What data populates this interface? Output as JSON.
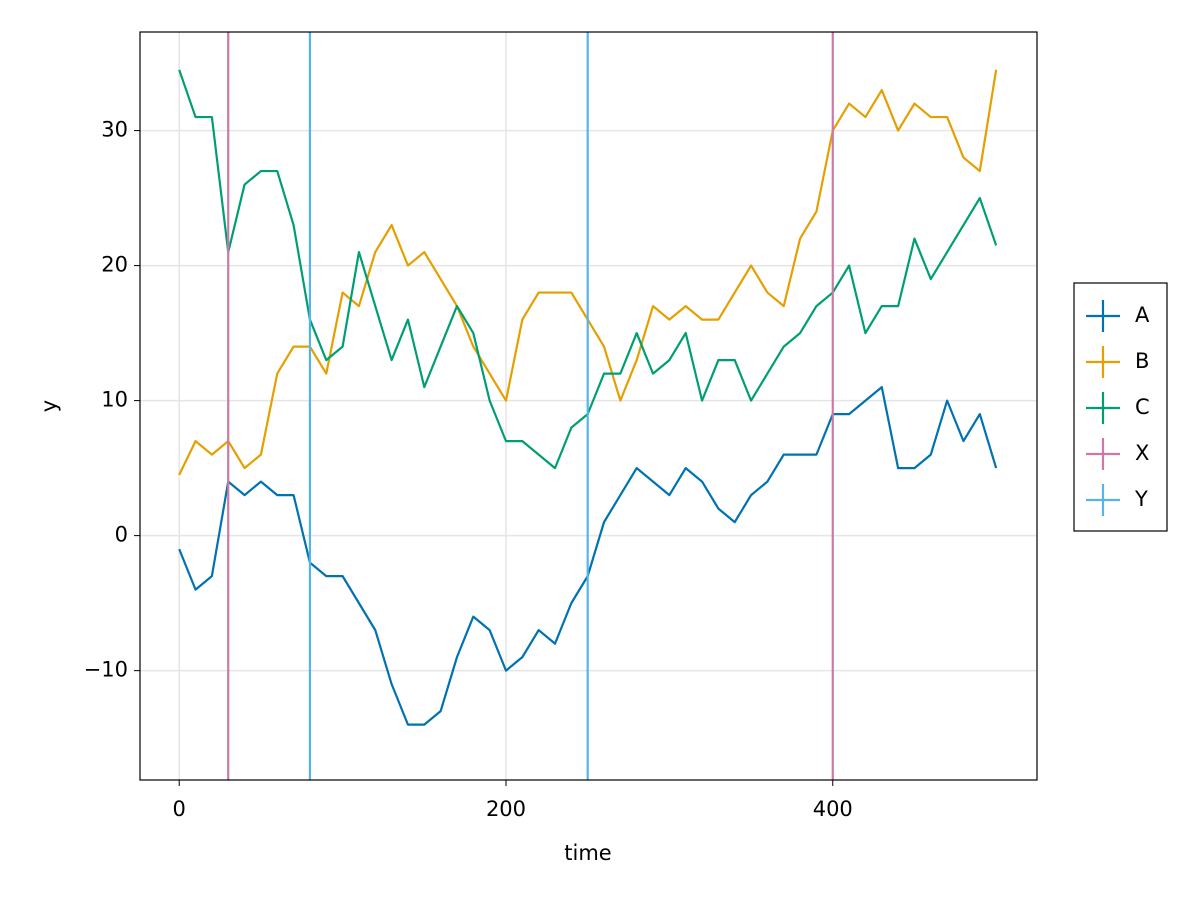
{
  "chart_data": {
    "type": "line",
    "x_label": "time",
    "y_label": "y",
    "x": [
      0,
      10,
      20,
      30,
      40,
      50,
      60,
      70,
      80,
      90,
      100,
      110,
      120,
      130,
      140,
      150,
      160,
      170,
      180,
      190,
      200,
      210,
      220,
      230,
      240,
      250,
      260,
      270,
      280,
      290,
      300,
      310,
      320,
      330,
      340,
      350,
      360,
      370,
      380,
      390,
      400,
      410,
      420,
      430,
      440,
      450,
      460,
      470,
      480,
      490,
      500
    ],
    "series": [
      {
        "name": "A",
        "color": "#0072b2",
        "values": [
          -1,
          -4,
          -3,
          4,
          3,
          4,
          3,
          3,
          -2,
          -3,
          -3,
          -5,
          -7,
          -11,
          -14,
          -14,
          -13,
          -9,
          -6,
          -7,
          -10,
          -9,
          -7,
          -8,
          -5,
          -3,
          1,
          3,
          5,
          4,
          3,
          5,
          4,
          2,
          1,
          3,
          4,
          6,
          6,
          6,
          9,
          9,
          10,
          11,
          5,
          5,
          6,
          10,
          7,
          9,
          5
        ]
      },
      {
        "name": "B",
        "color": "#e69f00",
        "values": [
          4.5,
          7,
          6,
          7,
          5,
          6,
          12,
          14,
          14,
          12,
          18,
          17,
          21,
          23,
          20,
          21,
          19,
          17,
          14,
          12,
          10,
          16,
          18,
          18,
          18,
          16,
          14,
          10,
          13,
          17,
          16,
          17,
          16,
          16,
          18,
          20,
          18,
          17,
          22,
          24,
          30,
          32,
          31,
          33,
          30,
          32,
          31,
          31,
          28,
          27,
          34.5
        ]
      },
      {
        "name": "C",
        "color": "#009e73",
        "values": [
          34.5,
          31,
          31,
          21,
          26,
          27,
          27,
          23,
          16,
          13,
          14,
          21,
          17,
          13,
          16,
          11,
          14,
          17,
          15,
          10,
          7,
          7,
          6,
          5,
          8,
          9,
          12,
          12,
          15,
          12,
          13,
          15,
          10,
          13,
          13,
          10,
          12,
          14,
          15,
          17,
          18,
          20,
          15,
          17,
          17,
          22,
          19,
          21,
          23,
          25,
          21.5
        ]
      }
    ],
    "vlines": [
      {
        "name": "X",
        "color": "#cc79a7",
        "x": [
          30,
          400
        ]
      },
      {
        "name": "Y",
        "color": "#56b4e9",
        "x": [
          80,
          250
        ]
      }
    ],
    "xlim": [
      -24,
      525
    ],
    "ylim": [
      -18.1,
      37.3
    ],
    "xticks": [
      0,
      200,
      400
    ],
    "yticks": [
      {
        "value": -10,
        "label": "−10"
      },
      0,
      10,
      20,
      30
    ],
    "grid": true,
    "legend": "right"
  }
}
